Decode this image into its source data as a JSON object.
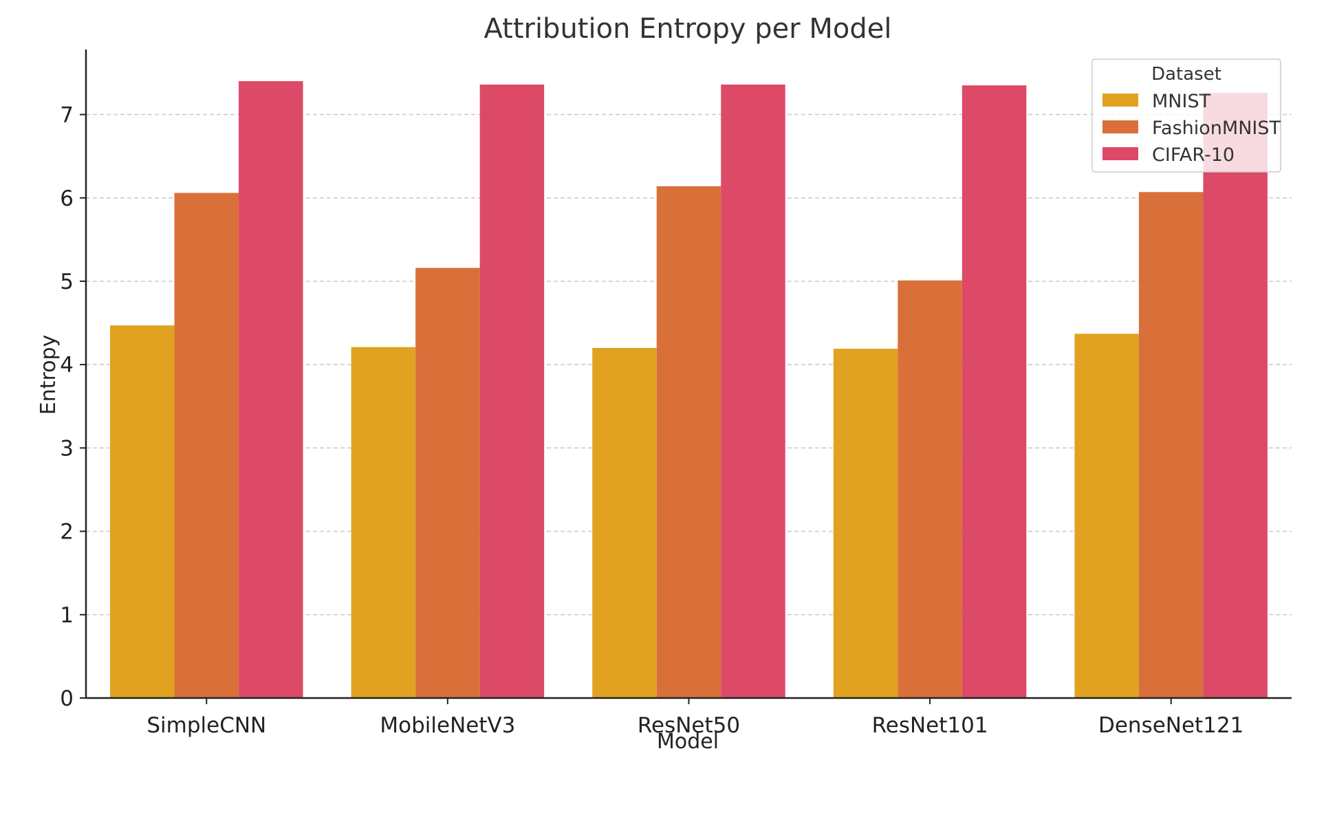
{
  "chart_data": {
    "type": "bar",
    "title": "Attribution Entropy per Model",
    "xlabel": "Model",
    "ylabel": "Entropy",
    "categories": [
      "SimpleCNN",
      "MobileNetV3",
      "ResNet50",
      "ResNet101",
      "DenseNet121"
    ],
    "series": [
      {
        "name": "MNIST",
        "color": "#e0a220",
        "values": [
          4.47,
          4.21,
          4.2,
          4.19,
          4.37
        ]
      },
      {
        "name": "FashionMNIST",
        "color": "#d9703a",
        "values": [
          6.06,
          5.16,
          6.14,
          5.01,
          6.07
        ]
      },
      {
        "name": "CIFAR-10",
        "color": "#dc4a68",
        "values": [
          7.4,
          7.36,
          7.36,
          7.35,
          7.26
        ]
      }
    ],
    "yticks": [
      0,
      1,
      2,
      3,
      4,
      5,
      6,
      7
    ],
    "ylim": [
      0,
      7.78
    ],
    "grid": true,
    "legend": {
      "title": "Dataset",
      "position": "top-right"
    }
  }
}
